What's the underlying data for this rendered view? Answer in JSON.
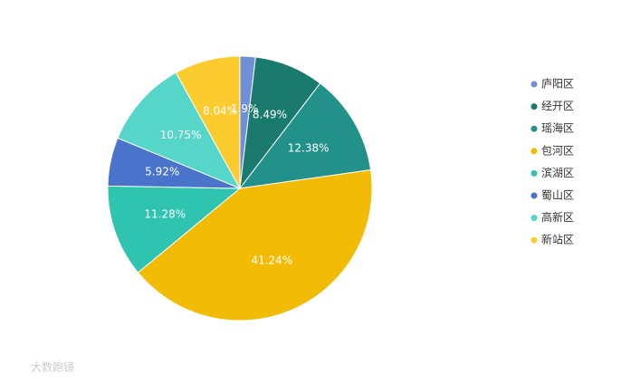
{
  "chart_data": {
    "type": "pie",
    "categories": [
      "庐阳区",
      "经开区",
      "瑶海区",
      "包河区",
      "滨湖区",
      "蜀山区",
      "高新区",
      "新站区"
    ],
    "values": [
      1.9,
      8.49,
      12.38,
      41.24,
      11.28,
      5.92,
      10.75,
      8.04
    ],
    "value_labels": [
      "1.9%",
      "8.49%",
      "12.38%",
      "41.24%",
      "11.28%",
      "5.92%",
      "10.75%",
      "8.04%"
    ],
    "colors": [
      "#6f8fd6",
      "#1b7a6e",
      "#22918a",
      "#f2bb05",
      "#2ec4b0",
      "#4a74cc",
      "#56d5c9",
      "#fccb2e"
    ],
    "legend": "right",
    "watermark": "大数跑镜"
  }
}
